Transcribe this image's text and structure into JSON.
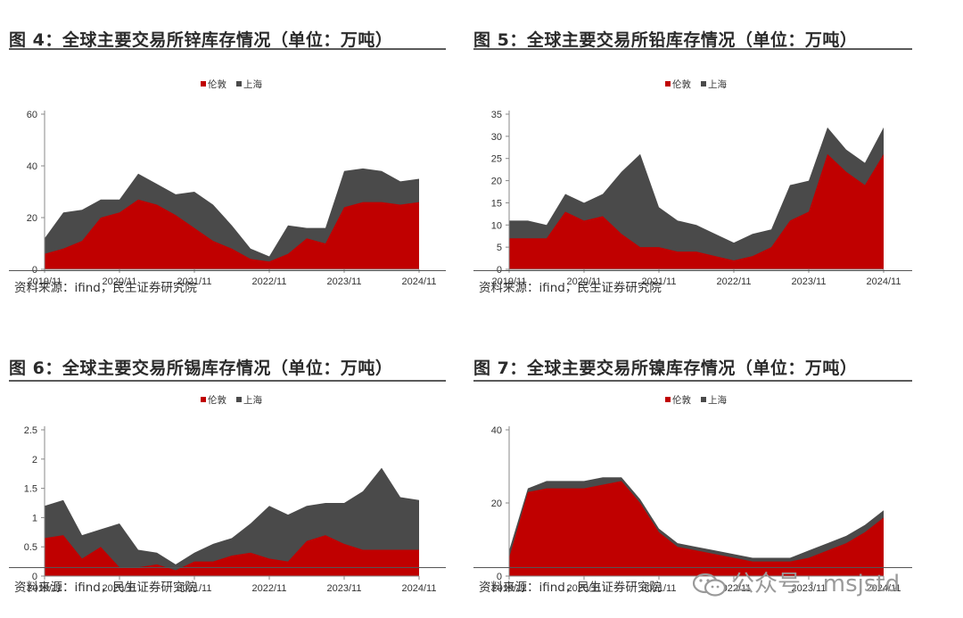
{
  "panels": [
    {
      "title": "图 4：全球主要交易所锌库存情况（单位：万吨）",
      "source": "资料来源：ifind，民生证券研究院"
    },
    {
      "title": "图 5：全球主要交易所铅库存情况（单位：万吨）",
      "source": "资料来源：ifind，民生证券研究院"
    },
    {
      "title": "图 6：全球主要交易所锡库存情况（单位：万吨）",
      "source": "资料来源：ifind，民生证券研究院"
    },
    {
      "title": "图 7：全球主要交易所镍库存情况（单位：万吨）",
      "source": "资料来源：ifind，民生证券研究院"
    }
  ],
  "watermark": "公众号 · msjstd",
  "colors": {
    "lme": "#c00000",
    "shfe": "#4a4a4a",
    "axis": "#888888"
  },
  "chart_data": [
    {
      "type": "area",
      "stacked": true,
      "series_names": [
        "伦敦",
        "上海"
      ],
      "x": [
        "2019/11",
        "2020/02",
        "2020/05",
        "2020/08",
        "2020/11",
        "2021/02",
        "2021/05",
        "2021/08",
        "2021/11",
        "2022/02",
        "2022/05",
        "2022/08",
        "2022/11",
        "2023/02",
        "2023/05",
        "2023/08",
        "2023/11",
        "2024/02",
        "2024/05",
        "2024/08",
        "2024/11"
      ],
      "xticks": [
        "2019/11",
        "2020/11",
        "2021/11",
        "2022/11",
        "2023/11",
        "2024/11"
      ],
      "ylim": [
        0,
        60
      ],
      "yticks": [
        0,
        20,
        40,
        60
      ],
      "series": [
        {
          "name": "伦敦",
          "values": [
            6,
            8,
            11,
            20,
            22,
            27,
            25,
            21,
            16,
            11,
            8,
            4,
            3,
            6,
            12,
            10,
            24,
            26,
            26,
            25,
            26
          ]
        },
        {
          "name": "上海",
          "values": [
            6,
            14,
            12,
            7,
            5,
            10,
            8,
            8,
            14,
            14,
            9,
            4,
            2,
            11,
            4,
            6,
            14,
            13,
            12,
            9,
            9
          ]
        }
      ]
    },
    {
      "type": "area",
      "stacked": true,
      "series_names": [
        "伦敦",
        "上海"
      ],
      "x": [
        "2019/11",
        "2020/02",
        "2020/05",
        "2020/08",
        "2020/11",
        "2021/02",
        "2021/05",
        "2021/08",
        "2021/11",
        "2022/02",
        "2022/05",
        "2022/08",
        "2022/11",
        "2023/02",
        "2023/05",
        "2023/08",
        "2023/11",
        "2024/02",
        "2024/05",
        "2024/08",
        "2024/11"
      ],
      "xticks": [
        "2019/11",
        "2020/11",
        "2021/11",
        "2022/11",
        "2023/11",
        "2024/11"
      ],
      "ylim": [
        0,
        35
      ],
      "yticks": [
        0,
        5,
        10,
        15,
        20,
        25,
        30,
        35
      ],
      "series": [
        {
          "name": "伦敦",
          "values": [
            7,
            7,
            7,
            13,
            11,
            12,
            8,
            5,
            5,
            4,
            4,
            3,
            2,
            3,
            5,
            11,
            13,
            26,
            22,
            19,
            26
          ]
        },
        {
          "name": "上海",
          "values": [
            4,
            4,
            3,
            4,
            4,
            5,
            14,
            21,
            9,
            7,
            6,
            5,
            4,
            5,
            4,
            8,
            7,
            6,
            5,
            5,
            6
          ]
        }
      ]
    },
    {
      "type": "area",
      "stacked": true,
      "series_names": [
        "伦敦",
        "上海"
      ],
      "x": [
        "2019/11",
        "2020/02",
        "2020/05",
        "2020/08",
        "2020/11",
        "2021/02",
        "2021/05",
        "2021/08",
        "2021/11",
        "2022/02",
        "2022/05",
        "2022/08",
        "2022/11",
        "2023/02",
        "2023/05",
        "2023/08",
        "2023/11",
        "2024/02",
        "2024/05",
        "2024/08",
        "2024/11"
      ],
      "xticks": [
        "2019/11",
        "2020/11",
        "2021/11",
        "2022/11",
        "2023/11",
        "2024/11"
      ],
      "ylim": [
        0,
        2.5
      ],
      "yticks": [
        0,
        0.5,
        1,
        1.5,
        2,
        2.5
      ],
      "series": [
        {
          "name": "伦敦",
          "values": [
            0.65,
            0.7,
            0.3,
            0.5,
            0.15,
            0.15,
            0.2,
            0.1,
            0.25,
            0.25,
            0.35,
            0.4,
            0.3,
            0.25,
            0.6,
            0.7,
            0.55,
            0.45,
            0.45,
            0.45,
            0.45
          ]
        },
        {
          "name": "上海",
          "values": [
            0.55,
            0.6,
            0.4,
            0.3,
            0.75,
            0.3,
            0.2,
            0.1,
            0.15,
            0.3,
            0.3,
            0.5,
            0.9,
            0.8,
            0.6,
            0.55,
            0.7,
            1.0,
            1.4,
            0.9,
            0.85
          ]
        }
      ]
    },
    {
      "type": "area",
      "stacked": true,
      "series_names": [
        "伦敦",
        "上海"
      ],
      "x": [
        "2019/11",
        "2020/02",
        "2020/05",
        "2020/08",
        "2020/11",
        "2021/02",
        "2021/05",
        "2021/08",
        "2021/11",
        "2022/02",
        "2022/05",
        "2022/08",
        "2022/11",
        "2023/02",
        "2023/05",
        "2023/08",
        "2023/11",
        "2024/02",
        "2024/05",
        "2024/08",
        "2024/11"
      ],
      "xticks": [
        "2019/11",
        "2020/11",
        "2021/11",
        "2022/11",
        "2023/11",
        "2024/11"
      ],
      "ylim": [
        0,
        40
      ],
      "yticks": [
        0,
        20,
        40
      ],
      "series": [
        {
          "name": "伦敦",
          "values": [
            5,
            23,
            24,
            24,
            24,
            25,
            26,
            20,
            12,
            8,
            7,
            6,
            5,
            4,
            4,
            4,
            5,
            7,
            9,
            12,
            16
          ]
        },
        {
          "name": "上海",
          "values": [
            2,
            1,
            2,
            2,
            2,
            2,
            1,
            1,
            1,
            1,
            1,
            1,
            1,
            1,
            1,
            1,
            2,
            2,
            2,
            2,
            2
          ]
        }
      ]
    }
  ]
}
